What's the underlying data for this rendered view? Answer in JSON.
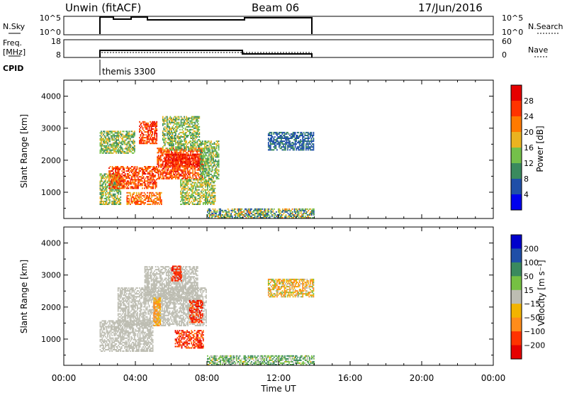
{
  "header": {
    "title": "Unwin (fitACF)",
    "beam": "Beam 06",
    "date": "17/Jun/2016"
  },
  "top_panels": {
    "nsky": {
      "left_label": "N.Sky",
      "left_ticks": [
        "10^5",
        "10^0"
      ],
      "right_ticks": [
        "10^5",
        "10^0"
      ],
      "right_label": "N.Search"
    },
    "freq": {
      "left_label_1": "Freq.",
      "left_label_2": "[MHz]",
      "left_ticks": [
        "18",
        "8"
      ],
      "right_ticks": [
        "60",
        "0"
      ],
      "right_label": "Nave"
    },
    "cpid": {
      "label": "CPID",
      "program": "themis 3300"
    }
  },
  "colors": {
    "power": [
      "#0000ee",
      "#1f4fa8",
      "#3a8a5e",
      "#74c04a",
      "#eab320",
      "#ff7a00",
      "#ff3300",
      "#e60000"
    ],
    "velocity": [
      "#e60000",
      "#ff3300",
      "#ff8c1a",
      "#f2b400",
      "#bdbdb2",
      "#76c043",
      "#3a8a5e",
      "#1f4fa8",
      "#0000cc"
    ]
  },
  "chart_data": [
    {
      "type": "heatmap",
      "panel": "power",
      "xlabel": "Time UT",
      "ylabel": "Slant Range [km]",
      "xlim": [
        0,
        24
      ],
      "ylim": [
        180,
        4500
      ],
      "x_ticks": [
        "00:00",
        "04:00",
        "08:00",
        "12:00",
        "16:00",
        "20:00",
        "00:00"
      ],
      "y_ticks": [
        "1000",
        "2000",
        "3000",
        "4000"
      ],
      "colorbar": {
        "label": "Power [dB]",
        "ticks": [
          "4",
          "8",
          "12",
          "16",
          "20",
          "24",
          "28"
        ],
        "range": [
          0,
          32
        ]
      },
      "regions": [
        {
          "t0": 2.0,
          "t1": 3.2,
          "r0": 600,
          "r1": 1600,
          "v0": 8,
          "v1": 20
        },
        {
          "t0": 2.5,
          "t1": 5.2,
          "r0": 1100,
          "r1": 1800,
          "v0": 20,
          "v1": 30
        },
        {
          "t0": 5.2,
          "t1": 7.8,
          "r0": 1400,
          "r1": 2400,
          "v0": 20,
          "v1": 30
        },
        {
          "t0": 5.6,
          "t1": 7.8,
          "r0": 1800,
          "r1": 2200,
          "v0": 24,
          "v1": 32
        },
        {
          "t0": 3.5,
          "t1": 5.5,
          "r0": 600,
          "r1": 1000,
          "v0": 18,
          "v1": 28
        },
        {
          "t0": 2.0,
          "t1": 4.0,
          "r0": 2200,
          "r1": 2900,
          "v0": 8,
          "v1": 20
        },
        {
          "t0": 4.2,
          "t1": 5.2,
          "r0": 2500,
          "r1": 3200,
          "v0": 22,
          "v1": 30
        },
        {
          "t0": 5.5,
          "t1": 7.6,
          "r0": 2300,
          "r1": 3400,
          "v0": 8,
          "v1": 20
        },
        {
          "t0": 7.6,
          "t1": 8.7,
          "r0": 1400,
          "r1": 2600,
          "v0": 8,
          "v1": 18
        },
        {
          "t0": 6.5,
          "t1": 8.5,
          "r0": 600,
          "r1": 1400,
          "v0": 10,
          "v1": 20
        },
        {
          "t0": 11.4,
          "t1": 14.0,
          "r0": 2300,
          "r1": 2900,
          "v0": 4,
          "v1": 10
        },
        {
          "t0": 8.0,
          "t1": 14.0,
          "r0": 180,
          "r1": 500,
          "v0": 4,
          "v1": 22
        }
      ]
    },
    {
      "type": "heatmap",
      "panel": "velocity",
      "xlabel": "Time UT",
      "ylabel": "Slant Range [km]",
      "xlim": [
        0,
        24
      ],
      "ylim": [
        180,
        4500
      ],
      "x_ticks": [
        "00:00",
        "04:00",
        "08:00",
        "12:00",
        "16:00",
        "20:00",
        "00:00"
      ],
      "y_ticks": [
        "1000",
        "2000",
        "3000",
        "4000"
      ],
      "colorbar": {
        "label": "Velocity [m s⁻¹]",
        "ticks": [
          "200",
          "100",
          "50",
          "15",
          "−15",
          "−50",
          "−100",
          "−200"
        ]
      },
      "regions": [
        {
          "t0": 2.0,
          "t1": 5.0,
          "r0": 600,
          "r1": 1600,
          "v0": -15,
          "v1": 15
        },
        {
          "t0": 3.0,
          "t1": 8.0,
          "r0": 1400,
          "r1": 2600,
          "v0": -15,
          "v1": 15
        },
        {
          "t0": 4.5,
          "t1": 7.5,
          "r0": 2200,
          "r1": 3300,
          "v0": -15,
          "v1": 15
        },
        {
          "t0": 5.0,
          "t1": 5.4,
          "r0": 1400,
          "r1": 2300,
          "v0": -80,
          "v1": -30
        },
        {
          "t0": 6.2,
          "t1": 7.8,
          "r0": 700,
          "r1": 1300,
          "v0": -250,
          "v1": -60
        },
        {
          "t0": 7.0,
          "t1": 7.8,
          "r0": 1500,
          "r1": 2200,
          "v0": -250,
          "v1": -80
        },
        {
          "t0": 6.0,
          "t1": 6.6,
          "r0": 2800,
          "r1": 3300,
          "v0": -250,
          "v1": -100
        },
        {
          "t0": 11.4,
          "t1": 14.0,
          "r0": 2300,
          "r1": 2900,
          "v0": -100,
          "v1": 40
        },
        {
          "t0": 8.0,
          "t1": 14.0,
          "r0": 180,
          "r1": 500,
          "v0": -20,
          "v1": 100
        }
      ]
    }
  ]
}
